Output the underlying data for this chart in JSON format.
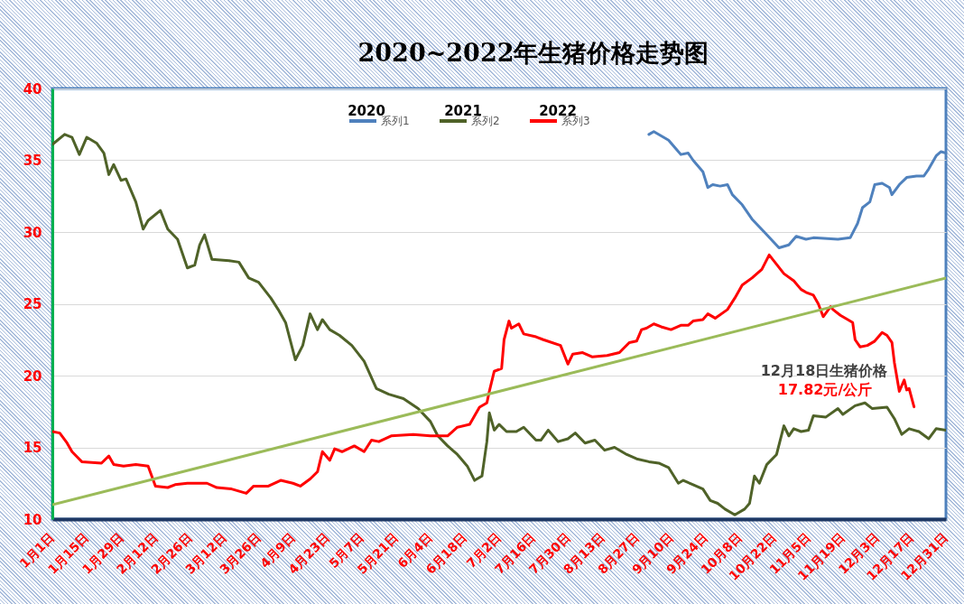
{
  "chart_data": {
    "type": "line",
    "title": "2020~2022年生猪价格走势图",
    "annotations": [
      "2020",
      "2021",
      "2022",
      "12月18日生猪价格",
      "17.82元/公斤"
    ],
    "xlim": [
      "--01-01",
      "--12-31"
    ],
    "xticks": [
      {
        "value": "--01-01",
        "label": "1月1日"
      },
      {
        "value": "--01-15",
        "label": "1月15日"
      },
      {
        "value": "--01-29",
        "label": "1月29日"
      },
      {
        "value": "--02-12",
        "label": "2月12日"
      },
      {
        "value": "--02-26",
        "label": "2月26日"
      },
      {
        "value": "--03-12",
        "label": "3月12日"
      },
      {
        "value": "--03-26",
        "label": "3月26日"
      },
      {
        "value": "--04-09",
        "label": "4月9日"
      },
      {
        "value": "--04-23",
        "label": "4月23日"
      },
      {
        "value": "--05-07",
        "label": "5月7日"
      },
      {
        "value": "--05-21",
        "label": "5月21日"
      },
      {
        "value": "--06-04",
        "label": "6月4日"
      },
      {
        "value": "--06-18",
        "label": "6月18日"
      },
      {
        "value": "--07-02",
        "label": "7月2日"
      },
      {
        "value": "--07-16",
        "label": "7月16日"
      },
      {
        "value": "--07-30",
        "label": "7月30日"
      },
      {
        "value": "--08-13",
        "label": "8月13日"
      },
      {
        "value": "--08-27",
        "label": "8月27日"
      },
      {
        "value": "--09-10",
        "label": "9月10日"
      },
      {
        "value": "--09-24",
        "label": "9月24日"
      },
      {
        "value": "--10-08",
        "label": "10月8日"
      },
      {
        "value": "--10-22",
        "label": "10月22日"
      },
      {
        "value": "--11-05",
        "label": "11月5日"
      },
      {
        "value": "--11-19",
        "label": "11月19日"
      },
      {
        "value": "--12-03",
        "label": "12月3日"
      },
      {
        "value": "--12-17",
        "label": "12月17日"
      },
      {
        "value": "--12-31",
        "label": "12月31日"
      }
    ],
    "ylim": [
      10,
      40
    ],
    "yticks": [
      10,
      15,
      20,
      25,
      30,
      35,
      40
    ],
    "grid": "y",
    "legend": "top",
    "series": [
      {
        "name": "系列1",
        "color": "#4f81bd",
        "x": [
          "--09-01",
          "--09-03",
          "--09-06",
          "--09-09",
          "--09-12",
          "--09-14",
          "--09-17",
          "--09-19",
          "--09-23",
          "--09-25",
          "--09-27",
          "--09-30",
          "--10-03",
          "--10-05",
          "--10-09",
          "--10-13",
          "--10-18",
          "--10-24",
          "--10-28",
          "--10-31",
          "--11-04",
          "--11-07",
          "--11-17",
          "--11-22",
          "--11-25",
          "--11-27",
          "--11-30",
          "--12-02",
          "--12-05",
          "--12-08",
          "--12-09",
          "--12-12",
          "--12-15",
          "--12-19",
          "--12-22",
          "--12-24",
          "--12-27",
          "--12-29",
          "--12-31"
        ],
        "values": [
          36.8,
          37.0,
          36.7,
          36.4,
          35.8,
          35.4,
          35.5,
          35.0,
          34.2,
          33.1,
          33.3,
          33.2,
          33.3,
          32.6,
          31.9,
          30.9,
          30.0,
          28.9,
          29.1,
          29.7,
          29.5,
          29.6,
          29.5,
          29.6,
          30.6,
          31.7,
          32.1,
          33.3,
          33.4,
          33.1,
          32.6,
          33.3,
          33.8,
          33.9,
          33.9,
          34.4,
          35.3,
          35.6,
          35.5
        ]
      },
      {
        "name": "系列2",
        "color": "#4f6228",
        "x": [
          "--01-01",
          "--01-06",
          "--01-09",
          "--01-12",
          "--01-15",
          "--01-19",
          "--01-22",
          "--01-24",
          "--01-26",
          "--01-29",
          "--01-31",
          "--02-04",
          "--02-07",
          "--02-09",
          "--02-14",
          "--02-17",
          "--02-21",
          "--02-25",
          "--02-28",
          "--03-02",
          "--03-04",
          "--03-07",
          "--03-14",
          "--03-18",
          "--03-22",
          "--03-26",
          "--03-31",
          "--04-03",
          "--04-06",
          "--04-10",
          "--04-13",
          "--04-16",
          "--04-19",
          "--04-21",
          "--04-24",
          "--04-28",
          "--05-03",
          "--05-08",
          "--05-13",
          "--05-18",
          "--05-24",
          "--05-30",
          "--06-04",
          "--06-07",
          "--06-11",
          "--06-15",
          "--06-19",
          "--06-22",
          "--06-25",
          "--06-27",
          "--06-28",
          "--06-30",
          "--07-02",
          "--07-05",
          "--07-09",
          "--07-12",
          "--07-17",
          "--07-19",
          "--07-22",
          "--07-26",
          "--07-30",
          "--08-02",
          "--08-06",
          "--08-10",
          "--08-14",
          "--08-18",
          "--08-23",
          "--08-27",
          "--09-01",
          "--09-05",
          "--09-09",
          "--09-13",
          "--09-15",
          "--09-19",
          "--09-23",
          "--09-26",
          "--09-29",
          "--10-02",
          "--10-06",
          "--10-10",
          "--10-12",
          "--10-14",
          "--10-16",
          "--10-19",
          "--10-23",
          "--10-26",
          "--10-28",
          "--10-30",
          "--11-02",
          "--11-05",
          "--11-07",
          "--11-12",
          "--11-17",
          "--11-19",
          "--11-24",
          "--11-28",
          "--12-01",
          "--12-07",
          "--12-10",
          "--12-13",
          "--12-16",
          "--12-20",
          "--12-24",
          "--12-27",
          "--12-31"
        ],
        "values": [
          36.1,
          36.8,
          36.6,
          35.4,
          36.6,
          36.2,
          35.5,
          34.0,
          34.7,
          33.6,
          33.7,
          32.1,
          30.2,
          30.8,
          31.5,
          30.2,
          29.5,
          27.5,
          27.7,
          29.1,
          29.8,
          28.1,
          28.0,
          27.9,
          26.8,
          26.5,
          25.4,
          24.6,
          23.7,
          21.1,
          22.1,
          24.3,
          23.2,
          23.9,
          23.2,
          22.8,
          22.1,
          21.0,
          19.1,
          18.7,
          18.4,
          17.7,
          16.8,
          15.8,
          15.1,
          14.5,
          13.7,
          12.7,
          13.0,
          15.4,
          17.4,
          16.2,
          16.6,
          16.1,
          16.1,
          16.4,
          15.5,
          15.5,
          16.2,
          15.4,
          15.6,
          16.0,
          15.3,
          15.5,
          14.8,
          15.0,
          14.5,
          14.2,
          14.0,
          13.9,
          13.6,
          12.5,
          12.7,
          12.4,
          12.1,
          11.3,
          11.1,
          10.7,
          10.3,
          10.7,
          11.1,
          13.0,
          12.5,
          13.8,
          14.5,
          16.5,
          15.8,
          16.3,
          16.1,
          16.2,
          17.2,
          17.1,
          17.7,
          17.3,
          17.9,
          18.1,
          17.7,
          17.8,
          17.0,
          15.9,
          16.3,
          16.1,
          15.6,
          16.3,
          16.2
        ]
      },
      {
        "name": "系列3",
        "color": "#ff0000",
        "x": [
          "--01-01",
          "--01-04",
          "--01-07",
          "--01-09",
          "--01-13",
          "--01-21",
          "--01-24",
          "--01-26",
          "--01-30",
          "--02-04",
          "--02-09",
          "--02-12",
          "--02-17",
          "--02-20",
          "--02-25",
          "--03-05",
          "--03-09",
          "--03-15",
          "--03-21",
          "--03-24",
          "--03-30",
          "--04-04",
          "--04-09",
          "--04-12",
          "--04-16",
          "--04-19",
          "--04-21",
          "--04-24",
          "--04-26",
          "--04-29",
          "--05-04",
          "--05-08",
          "--05-11",
          "--05-14",
          "--05-19",
          "--05-28",
          "--06-04",
          "--06-11",
          "--06-15",
          "--06-20",
          "--06-24",
          "--06-27",
          "--06-28",
          "--06-30",
          "--07-03",
          "--07-04",
          "--07-06",
          "--07-07",
          "--07-10",
          "--07-12",
          "--07-17",
          "--07-20",
          "--07-27",
          "--07-30",
          "--08-01",
          "--08-05",
          "--08-09",
          "--08-15",
          "--08-20",
          "--08-24",
          "--08-27",
          "--08-29",
          "--08-31",
          "--09-03",
          "--09-06",
          "--09-10",
          "--09-14",
          "--09-17",
          "--09-19",
          "--09-23",
          "--09-25",
          "--09-28",
          "--10-03",
          "--10-06",
          "--10-09",
          "--10-13",
          "--10-17",
          "--10-20",
          "--10-26",
          "--10-30",
          "--11-02",
          "--11-04",
          "--11-07",
          "--11-09",
          "--11-11",
          "--11-14",
          "--11-15",
          "--11-18",
          "--11-21",
          "--11-23",
          "--11-24",
          "--11-26",
          "--11-29",
          "--12-02",
          "--12-05",
          "--12-07",
          "--12-09",
          "--12-10",
          "--12-12",
          "--12-14",
          "--12-15",
          "--12-16",
          "--12-18"
        ],
        "values": [
          16.1,
          16.0,
          15.3,
          14.7,
          14.0,
          13.9,
          14.4,
          13.8,
          13.7,
          13.8,
          13.7,
          12.3,
          12.2,
          12.4,
          12.5,
          12.5,
          12.2,
          12.1,
          11.8,
          12.3,
          12.3,
          12.7,
          12.5,
          12.3,
          12.8,
          13.3,
          14.7,
          14.1,
          14.9,
          14.7,
          15.1,
          14.7,
          15.5,
          15.4,
          15.8,
          15.9,
          15.8,
          15.8,
          16.4,
          16.6,
          17.8,
          18.1,
          18.9,
          20.3,
          20.5,
          22.5,
          23.8,
          23.3,
          23.6,
          22.9,
          22.7,
          22.5,
          22.1,
          20.8,
          21.5,
          21.6,
          21.3,
          21.4,
          21.6,
          22.3,
          22.4,
          23.2,
          23.3,
          23.6,
          23.4,
          23.2,
          23.5,
          23.5,
          23.8,
          23.9,
          24.3,
          24.0,
          24.6,
          25.4,
          26.3,
          26.8,
          27.4,
          28.4,
          27.1,
          26.6,
          26.0,
          25.8,
          25.6,
          25.0,
          24.1,
          24.8,
          24.6,
          24.2,
          23.9,
          23.7,
          22.5,
          22.0,
          22.1,
          22.4,
          23.0,
          22.8,
          22.3,
          20.9,
          18.9,
          19.7,
          19.0,
          19.1,
          17.82
        ]
      },
      {
        "type": "line",
        "color": "#9bbb59",
        "x": [
          "--01-01",
          "--12-31"
        ],
        "values": [
          11.0,
          26.8
        ]
      }
    ]
  }
}
